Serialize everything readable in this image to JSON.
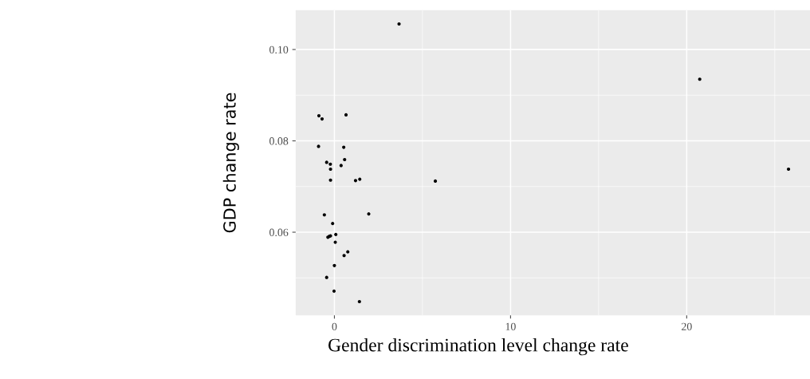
{
  "chart_data": {
    "type": "scatter",
    "xlabel": "Gender discrimination level change rate",
    "ylabel": "GDP change rate",
    "x": [
      3.67,
      -0.88,
      -0.7,
      0.66,
      -0.9,
      0.53,
      -0.44,
      -0.23,
      0.58,
      0.38,
      -0.22,
      -0.22,
      1.2,
      1.44,
      -0.57,
      1.95,
      -0.1,
      -0.37,
      -0.29,
      -0.22,
      0.08,
      0.05,
      0.55,
      0.76,
      0.0,
      -0.44,
      -0.02,
      1.42,
      5.73,
      20.74,
      25.78
    ],
    "series": [
      {
        "color": "#000000",
        "values": [
          0.1056,
          0.0855,
          0.0848,
          0.0857,
          0.0788,
          0.0786,
          0.0753,
          0.0749,
          0.0759,
          0.0746,
          0.0738,
          0.0714,
          0.0713,
          0.0716,
          0.0638,
          0.064,
          0.0619,
          0.0589,
          0.0591,
          0.0592,
          0.0595,
          0.0578,
          0.0549,
          0.0557,
          0.0527,
          0.0501,
          0.0471,
          0.0448,
          0.0712,
          0.0935,
          0.0738
        ]
      }
    ],
    "xlim": [
      -2.2,
      27.0
    ],
    "ylim": [
      0.0418,
      0.1086
    ],
    "xticks": [
      0,
      10,
      20
    ],
    "yticks": [
      {
        "value": 0.06,
        "label": "0.06"
      },
      {
        "value": 0.08,
        "label": "0.08"
      },
      {
        "value": 0.1,
        "label": "0.10"
      }
    ],
    "grid": true,
    "marker": "circle"
  }
}
